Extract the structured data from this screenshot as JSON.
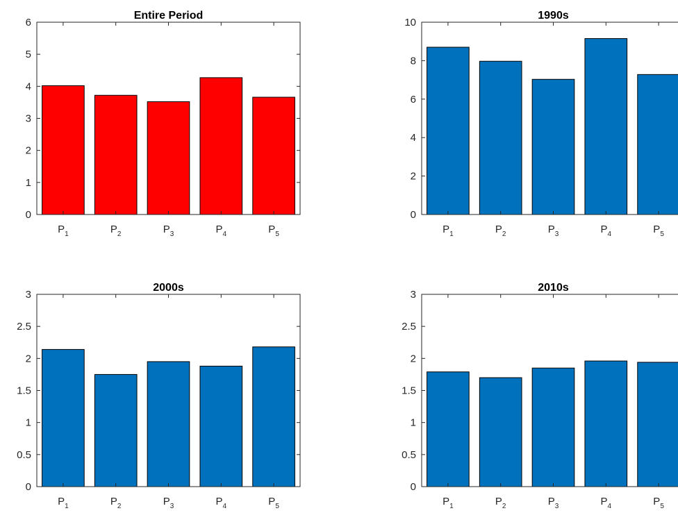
{
  "colors": {
    "entire_bar": "#ff0000",
    "decade_bar": "#0072bd",
    "axes": "#262626",
    "bar_edge": "#000000"
  },
  "chart_data": [
    {
      "type": "bar",
      "title": "Entire Period",
      "categories": [
        [
          "P",
          "1"
        ],
        [
          "P",
          "2"
        ],
        [
          "P",
          "3"
        ],
        [
          "P",
          "4"
        ],
        [
          "P",
          "5"
        ]
      ],
      "values": [
        4.02,
        3.72,
        3.52,
        4.27,
        3.66
      ],
      "ylim": [
        0,
        6
      ],
      "yticks": [
        "0",
        "1",
        "2",
        "3",
        "4",
        "5",
        "6"
      ],
      "color": "#ff0000",
      "grid": false
    },
    {
      "type": "bar",
      "title": "1990s",
      "categories": [
        [
          "P",
          "1"
        ],
        [
          "P",
          "2"
        ],
        [
          "P",
          "3"
        ],
        [
          "P",
          "4"
        ],
        [
          "P",
          "5"
        ]
      ],
      "values": [
        8.7,
        7.97,
        7.03,
        9.15,
        7.28
      ],
      "ylim": [
        0,
        10
      ],
      "yticks": [
        "0",
        "2",
        "4",
        "6",
        "8",
        "10"
      ],
      "color": "#0072bd",
      "grid": false
    },
    {
      "type": "bar",
      "title": "2000s",
      "categories": [
        [
          "P",
          "1"
        ],
        [
          "P",
          "2"
        ],
        [
          "P",
          "3"
        ],
        [
          "P",
          "4"
        ],
        [
          "P",
          "5"
        ]
      ],
      "values": [
        2.14,
        1.75,
        1.95,
        1.88,
        2.18
      ],
      "ylim": [
        0,
        3
      ],
      "yticks": [
        "0",
        "0.5",
        "1",
        "1.5",
        "2",
        "2.5",
        "3"
      ],
      "color": "#0072bd",
      "grid": false
    },
    {
      "type": "bar",
      "title": "2010s",
      "categories": [
        [
          "P",
          "1"
        ],
        [
          "P",
          "2"
        ],
        [
          "P",
          "3"
        ],
        [
          "P",
          "4"
        ],
        [
          "P",
          "5"
        ]
      ],
      "values": [
        1.79,
        1.7,
        1.85,
        1.96,
        1.94
      ],
      "ylim": [
        0,
        3
      ],
      "yticks": [
        "0",
        "0.5",
        "1",
        "1.5",
        "2",
        "2.5",
        "3"
      ],
      "color": "#0072bd",
      "grid": false
    }
  ]
}
